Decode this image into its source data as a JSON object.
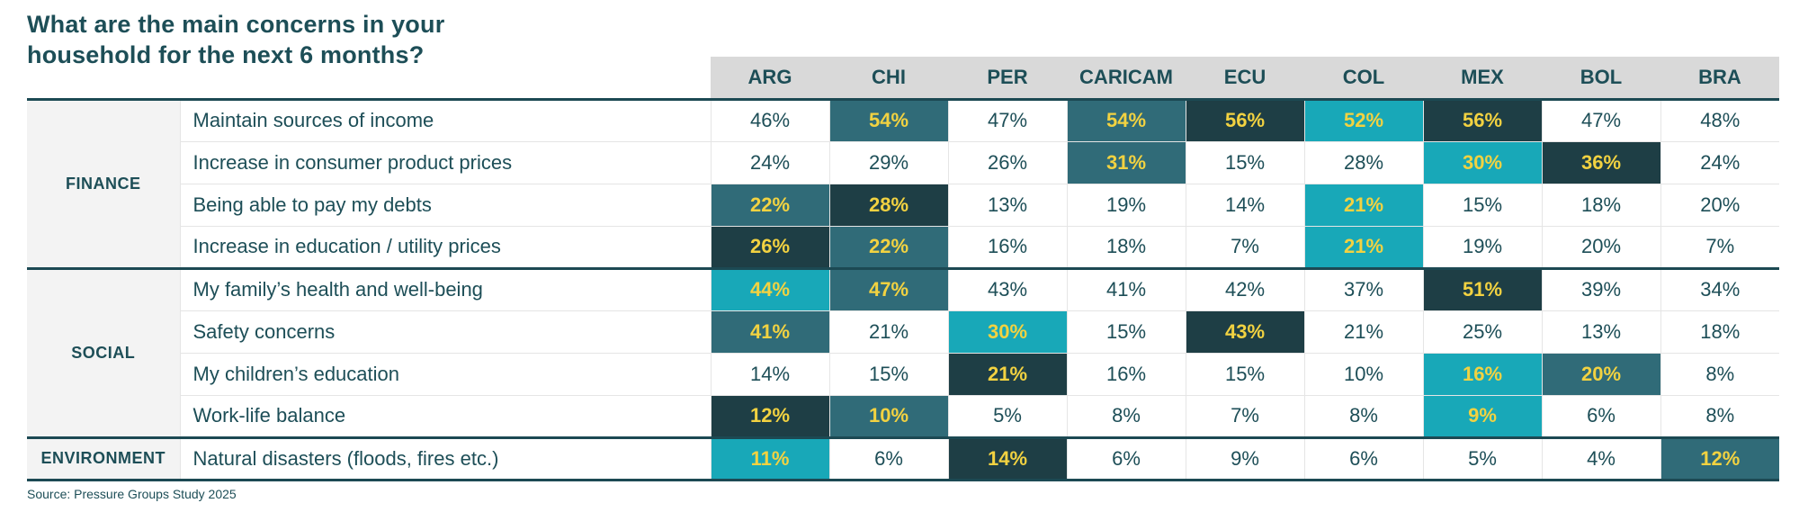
{
  "header": {
    "title_line1": "What are the main concerns in your",
    "title_line2": "household for the next 6 months?"
  },
  "footer": {
    "source": "Source: Pressure Groups Study 2025"
  },
  "colors": {
    "title_text": "#1d4e57",
    "cell_text": "#1d4e57",
    "header_bg": "#d9d9d9",
    "category_bg": "#f3f3f3",
    "thick_border": "#1c4953",
    "thin_border": "#e5e5e5",
    "highlight_text": "#f2d241",
    "highlights": {
      "medium": "#306b78",
      "dark": "#1e3e45",
      "cyan": "#18a8b8"
    }
  },
  "chart_data": {
    "type": "table",
    "title": "What are the main concerns in your household for the next 6 months?",
    "unit": "%",
    "columns": [
      "ARG",
      "CHI",
      "PER",
      "CARICAM",
      "ECU",
      "COL",
      "MEX",
      "BOL",
      "BRA"
    ],
    "groups": [
      {
        "category": "FINANCE",
        "rows": [
          {
            "label": "Maintain sources of income",
            "values": [
              46,
              54,
              47,
              54,
              56,
              52,
              56,
              47,
              48
            ],
            "highlights": [
              null,
              "medium",
              null,
              "medium",
              "dark",
              "cyan",
              "dark",
              null,
              null
            ]
          },
          {
            "label": "Increase in consumer product prices",
            "values": [
              24,
              29,
              26,
              31,
              15,
              28,
              30,
              36,
              24
            ],
            "highlights": [
              null,
              null,
              null,
              "medium",
              null,
              null,
              "cyan",
              "dark",
              null
            ]
          },
          {
            "label": "Being able to pay my debts",
            "values": [
              22,
              28,
              13,
              19,
              14,
              21,
              15,
              18,
              20
            ],
            "highlights": [
              "medium",
              "dark",
              null,
              null,
              null,
              "cyan",
              null,
              null,
              null
            ]
          },
          {
            "label": "Increase in education / utility prices",
            "values": [
              26,
              22,
              16,
              18,
              7,
              21,
              19,
              20,
              7
            ],
            "highlights": [
              "dark",
              "medium",
              null,
              null,
              null,
              "cyan",
              null,
              null,
              null
            ]
          }
        ]
      },
      {
        "category": "SOCIAL",
        "rows": [
          {
            "label": "My family’s health and well-being",
            "values": [
              44,
              47,
              43,
              41,
              42,
              37,
              51,
              39,
              34
            ],
            "highlights": [
              "cyan",
              "medium",
              null,
              null,
              null,
              null,
              "dark",
              null,
              null
            ]
          },
          {
            "label": "Safety concerns",
            "values": [
              41,
              21,
              30,
              15,
              43,
              21,
              25,
              13,
              18
            ],
            "highlights": [
              "medium",
              null,
              "cyan",
              null,
              "dark",
              null,
              null,
              null,
              null
            ]
          },
          {
            "label": "My children’s education",
            "values": [
              14,
              15,
              21,
              16,
              15,
              10,
              16,
              20,
              8
            ],
            "highlights": [
              null,
              null,
              "dark",
              null,
              null,
              null,
              "cyan",
              "medium",
              null
            ]
          },
          {
            "label": "Work-life balance",
            "values": [
              12,
              10,
              5,
              8,
              7,
              8,
              9,
              6,
              8
            ],
            "highlights": [
              "dark",
              "medium",
              null,
              null,
              null,
              null,
              "cyan",
              null,
              null
            ]
          }
        ]
      },
      {
        "category": "ENVIRONMENT",
        "rows": [
          {
            "label": "Natural disasters (floods, fires etc.)",
            "values": [
              11,
              6,
              14,
              6,
              9,
              6,
              5,
              4,
              12
            ],
            "highlights": [
              "cyan",
              null,
              "dark",
              null,
              null,
              null,
              null,
              null,
              "medium"
            ]
          }
        ]
      }
    ]
  }
}
